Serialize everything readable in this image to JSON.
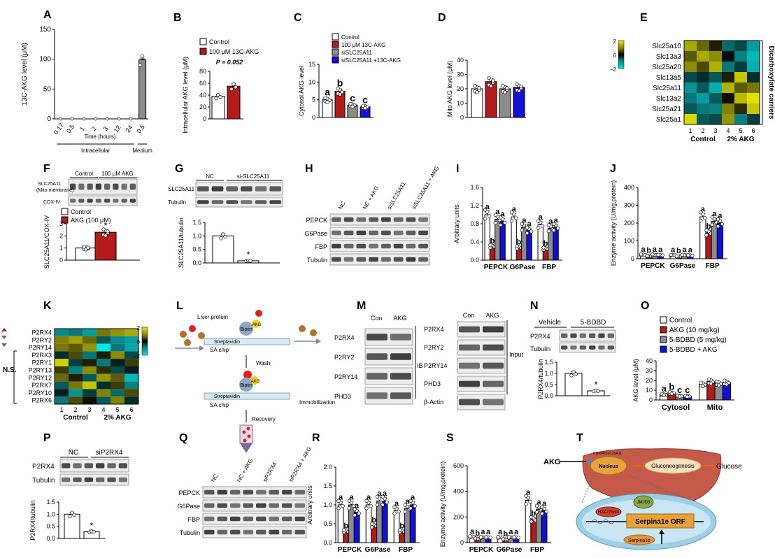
{
  "chart_data": [
    {
      "panel": "A",
      "type": "bar",
      "ylabel": "13C-AKG level (μM)",
      "xlabel": "Time (hours)",
      "ylim": [
        0,
        150
      ],
      "yticks": [
        0,
        50,
        100,
        150
      ],
      "categories": [
        "0.17",
        "0.5",
        "1",
        "2",
        "3",
        "12",
        "24",
        "0.5"
      ],
      "values": [
        0.5,
        0.5,
        0.5,
        0.5,
        0.5,
        0.5,
        0.5,
        99
      ],
      "groups": [
        {
          "label": "Intracellular",
          "from": 0,
          "to": 6
        },
        {
          "label": "Medium",
          "from": 7,
          "to": 7
        }
      ]
    },
    {
      "panel": "B",
      "type": "bar",
      "ylabel": "Intracellular AKG level (μM)",
      "ylim": [
        0,
        80
      ],
      "yticks": [
        0,
        20,
        40,
        60,
        80
      ],
      "series": [
        {
          "name": "Control",
          "values": [
            38
          ]
        },
        {
          "name": "100 μM 13C-AKG",
          "values": [
            55
          ]
        }
      ],
      "annotation": "P = 0.052"
    },
    {
      "panel": "C",
      "type": "bar",
      "ylabel": "Cytosol AKG level",
      "ylim": [
        0,
        15
      ],
      "yticks": [
        0,
        5,
        10,
        15
      ],
      "series": [
        {
          "name": "Control",
          "values": [
            5.0
          ]
        },
        {
          "name": "100 μM 13C-AKG",
          "values": [
            7.4
          ]
        },
        {
          "name": "siSLC25A11",
          "values": [
            3.5
          ]
        },
        {
          "name": "siSLC25A11 +13C-AKG",
          "values": [
            3.0
          ]
        }
      ],
      "letters": [
        "a",
        "b",
        "c",
        "c"
      ]
    },
    {
      "panel": "D",
      "type": "bar",
      "ylabel": "Mito AKG level (μM)",
      "ylim": [
        0,
        40
      ],
      "yticks": [
        0,
        10,
        20,
        30,
        40
      ],
      "values": [
        20,
        25,
        20,
        21
      ]
    },
    {
      "panel": "E",
      "type": "heatmap",
      "rows": [
        "Slc25a10",
        "Slc13a3",
        "Slc25a20",
        "Slc13a5",
        "Slc25a11",
        "Slc13a2",
        "Slc25a21",
        "Slc25a1"
      ],
      "columns": [
        "1",
        "2",
        "3",
        "4",
        "5",
        "6"
      ],
      "scale_ticks": [
        "2",
        "0",
        "−2"
      ],
      "group_labels": [
        "Control",
        "2% AKG"
      ],
      "side_label": "Dicarboxylate carriers",
      "values": [
        [
          1.3,
          0.7,
          0.2,
          -0.7,
          -0.5,
          -1.2
        ],
        [
          0.6,
          1.3,
          1.0,
          -0.1,
          -0.9,
          -1.5
        ],
        [
          1.0,
          0.5,
          1.4,
          -0.8,
          -0.4,
          -1.4
        ],
        [
          -0.5,
          -0.3,
          -0.6,
          0.2,
          1.6,
          -0.3
        ],
        [
          -1.1,
          -0.6,
          -1.4,
          1.4,
          0.6,
          0.8
        ],
        [
          -0.8,
          -1.2,
          -0.6,
          0.1,
          1.5,
          1.9
        ],
        [
          -0.6,
          -0.8,
          -0.9,
          0.9,
          0.3,
          1.6
        ],
        [
          1.8,
          -0.6,
          -0.5,
          1.1,
          -0.9,
          -0.4
        ]
      ]
    },
    {
      "panel": "F",
      "type": "bar",
      "ylabel": "SLC25A11/COX-IV",
      "ylim": [
        0,
        3
      ],
      "yticks": [
        0,
        1,
        2,
        3
      ],
      "series": [
        {
          "name": "Control",
          "values": [
            1.0
          ]
        },
        {
          "name": "AKG (100 μM)",
          "values": [
            2.3
          ]
        }
      ],
      "annotation": "*",
      "blot": {
        "columns": [
          "Control",
          "100 μM AKG"
        ],
        "rows": [
          "SLC25A11 (Mito membrane)",
          "COX-IV"
        ]
      }
    },
    {
      "panel": "G",
      "type": "bar",
      "ylabel": "SLC25A11/tubulin",
      "ylim": [
        0,
        1.5
      ],
      "yticks": [
        "0.0",
        "0.5",
        "1.0",
        "1.5"
      ],
      "values": [
        1.0,
        0.08
      ],
      "annotation": "*",
      "blot": {
        "columns": [
          "NC",
          "si-SLC25A11"
        ],
        "rows": [
          "SLC25A11",
          "Tubulin"
        ]
      }
    },
    {
      "panel": "H",
      "type": "blot",
      "columns": [
        "NC",
        "NC + AKG",
        "siSLC25A11",
        "siSLC25A11 + AKG"
      ],
      "rows": [
        "PEPCK",
        "G6Pase",
        "FBP",
        "Tubulin"
      ]
    },
    {
      "panel": "I",
      "type": "bar",
      "ylabel": "Arbitrary units",
      "ylim": [
        0,
        1.6
      ],
      "yticks": [
        "0.0",
        "0.4",
        "0.8",
        "1.2",
        "1.6"
      ],
      "categories": [
        "PEPCK",
        "G6Pase",
        "FBP"
      ],
      "series": [
        {
          "values": [
            1.0,
            0.95,
            0.78
          ]
        },
        {
          "values": [
            0.3,
            0.28,
            0.25
          ]
        },
        {
          "values": [
            0.9,
            0.72,
            0.7
          ]
        },
        {
          "values": [
            0.85,
            0.65,
            0.72
          ]
        }
      ],
      "letters": [
        [
          "a",
          "b",
          "a",
          "a"
        ],
        [
          "a",
          "b",
          "a",
          "a"
        ],
        [
          "a",
          "b",
          "a",
          "a"
        ]
      ]
    },
    {
      "panel": "J",
      "type": "bar",
      "ylabel": "Enzyme activity (U/mg.protein)",
      "ylim": [
        0,
        400
      ],
      "yticks": [
        0,
        100,
        200,
        300,
        400
      ],
      "categories": [
        "PEPCK",
        "G6Pase",
        "FBP"
      ],
      "series": [
        {
          "values": [
            22,
            20,
            235
          ]
        },
        {
          "values": [
            15,
            13,
            145
          ]
        },
        {
          "values": [
            22,
            20,
            210
          ]
        },
        {
          "values": [
            20,
            18,
            200
          ]
        }
      ],
      "letters": [
        [
          "a",
          "b",
          "a",
          "a"
        ],
        [
          "a",
          "b",
          "a",
          "a"
        ],
        [
          "a",
          "b",
          "a",
          "a"
        ]
      ]
    },
    {
      "panel": "K",
      "type": "heatmap",
      "rows": [
        "P2RX4",
        "P2RY2",
        "P2RY14",
        "P2RX3",
        "P2RY1",
        "P2RY13",
        "P2RY12",
        "P2RX7",
        "P2RY10",
        "P2RX6"
      ],
      "columns": [
        "1",
        "2",
        "3",
        "4",
        "5",
        "6"
      ],
      "scale_ticks": [
        "2",
        "0",
        "−2"
      ],
      "group_labels": [
        "Control",
        "2% AKG"
      ],
      "side_label": "N.S.",
      "values": [
        [
          -1.0,
          -0.8,
          -1.2,
          0.8,
          1.1,
          1.3
        ],
        [
          0.9,
          1.2,
          0.7,
          -0.6,
          -1.0,
          -1.2
        ],
        [
          0.8,
          0.6,
          1.1,
          -2.0,
          -0.8,
          -1.3
        ],
        [
          -0.3,
          0.5,
          -0.8,
          0.2,
          1.0,
          -0.5
        ],
        [
          1.7,
          -0.4,
          0.2,
          -0.8,
          -0.2,
          0.4
        ],
        [
          0.4,
          -0.9,
          1.0,
          0.3,
          -0.5,
          -0.2
        ],
        [
          0.7,
          0.2,
          -0.6,
          1.1,
          0.6,
          -1.5
        ],
        [
          -0.6,
          0.8,
          1.6,
          -0.3,
          0.4,
          -0.9
        ],
        [
          -0.2,
          -1.1,
          -0.4,
          0.9,
          -0.7,
          0.5
        ],
        [
          -0.8,
          0.5,
          0.1,
          -0.6,
          0.9,
          -0.3
        ]
      ]
    },
    {
      "panel": "L",
      "type": "schematic",
      "labels": {
        "liver": "Liver protein",
        "akg": "AKG",
        "biotin": "Biotin",
        "strep": "Streptavidin",
        "chip": "SA chip",
        "wash": "Wash",
        "immob": "Immobilization",
        "recovery": "Recovery"
      }
    },
    {
      "panel": "M",
      "type": "blot",
      "columns": [
        "Con",
        "AKG"
      ],
      "rows_left": [
        "P2RX4",
        "P2RY2",
        "P2RY14",
        "PHD3"
      ],
      "rows_right": [
        "P2RX4",
        "P2RY2",
        "P2RY14",
        "PHD3",
        "β-Actin"
      ],
      "labels": {
        "ib": "IB",
        "input": "Input"
      }
    },
    {
      "panel": "N",
      "type": "bar",
      "ylabel": "P2RX4/tubulin",
      "ylim": [
        0,
        1.5
      ],
      "yticks": [
        "0.0",
        "0.5",
        "1.0",
        "1.5"
      ],
      "values": [
        1.0,
        0.22
      ],
      "annotation": "*",
      "blot": {
        "columns": [
          "Vehicle",
          "5-BDBD"
        ],
        "rows": [
          "P2RX4",
          "Tubulin"
        ]
      }
    },
    {
      "panel": "O",
      "type": "bar",
      "ylabel": "AKG level (μM)",
      "ylim": [
        0,
        40
      ],
      "yticks": [
        0,
        10,
        20,
        30,
        40
      ],
      "categories": [
        "Cytosol",
        "Mito"
      ],
      "series": [
        {
          "name": "Control",
          "values": [
            5.5,
            16
          ]
        },
        {
          "name": "AKG (10 mg/kg)",
          "values": [
            7.2,
            19
          ]
        },
        {
          "name": "5-BDBD (5 mg/kg)",
          "values": [
            4.0,
            17
          ]
        },
        {
          "name": "5-BDBD + AKG",
          "values": [
            3.8,
            18
          ]
        }
      ],
      "letters": [
        "a",
        "b",
        "c",
        "c"
      ]
    },
    {
      "panel": "P",
      "type": "bar",
      "ylabel": "P2RX4/tubulin",
      "ylim": [
        0,
        1.5
      ],
      "yticks": [
        "0.0",
        "0.5",
        "1.0",
        "1.5"
      ],
      "values": [
        1.0,
        0.28
      ],
      "annotation": "*",
      "blot": {
        "columns": [
          "NC",
          "siP2RX4"
        ],
        "rows": [
          "P2RX4",
          "Tubulin"
        ]
      }
    },
    {
      "panel": "Q",
      "type": "blot",
      "columns": [
        "NC",
        "NC + AKG",
        "siP2RX4",
        "siP2RX4 + AKG"
      ],
      "rows": [
        "PEPCK",
        "G6Pase",
        "FBP",
        "Tubulin"
      ]
    },
    {
      "panel": "R",
      "type": "bar",
      "ylabel": "Arbitrary units",
      "ylim": [
        0,
        2.0
      ],
      "yticks": [
        "0.0",
        "0.5",
        "1.0",
        "1.5",
        "2.0"
      ],
      "categories": [
        "PEPCK",
        "G6Pase",
        "FBP"
      ],
      "series": [
        {
          "values": [
            1.0,
            1.0,
            0.85
          ]
        },
        {
          "values": [
            0.3,
            0.45,
            0.3
          ]
        },
        {
          "values": [
            1.0,
            1.1,
            0.9
          ]
        },
        {
          "values": [
            0.8,
            1.1,
            1.0
          ]
        }
      ],
      "letters": [
        [
          "a",
          "b",
          "a",
          "a"
        ],
        [
          "a",
          "b",
          "a",
          "a"
        ],
        [
          "a",
          "b",
          "a",
          "a"
        ]
      ]
    },
    {
      "panel": "S",
      "type": "bar",
      "ylabel": "Enzyme activity (U/mg.protein)",
      "ylim": [
        0,
        600
      ],
      "yticks": [
        0,
        200,
        400,
        600
      ],
      "categories": [
        "PEPCK",
        "G6Pase",
        "FBP"
      ],
      "series": [
        {
          "values": [
            45,
            40,
            330
          ]
        },
        {
          "values": [
            30,
            25,
            180
          ]
        },
        {
          "values": [
            40,
            40,
            260
          ]
        },
        {
          "values": [
            40,
            40,
            250
          ]
        }
      ],
      "letters": [
        [
          "a",
          "b",
          "a",
          "a"
        ],
        [
          "a",
          "b",
          "a",
          "a"
        ],
        [
          "a",
          "b",
          "a",
          "a"
        ]
      ]
    },
    {
      "panel": "T",
      "type": "schematic",
      "labels": {
        "akg": "AKG",
        "receptor": "P2RX4/SLC25A11",
        "nucleus": "Nucleus",
        "gng": "Gluconeogenesis",
        "glucose": "Glucose",
        "jmjd3": "JMJD3",
        "h3k27": "H3K27me3",
        "orf": "Serpina1e ORF",
        "serpina": "Serpina1e"
      }
    }
  ],
  "colors": {
    "control": "#ffffff",
    "akg": "#b41a1a",
    "si": "#8c8c8c",
    "si_akg": "#1010d8"
  }
}
